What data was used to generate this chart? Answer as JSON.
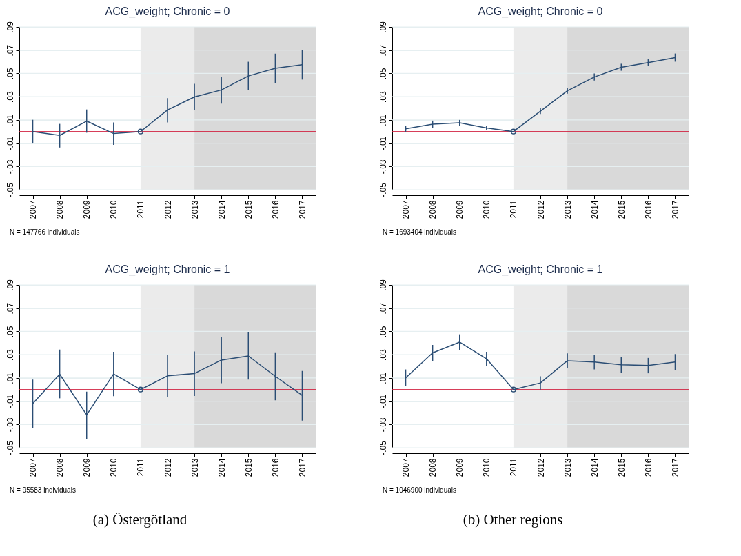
{
  "chart_data": [
    {
      "type": "line",
      "title": "ACG_weight; Chronic = 0",
      "annotations": [
        "N = 147766 individuals"
      ],
      "x": [
        2007,
        2008,
        2009,
        2010,
        2011,
        2012,
        2013,
        2014,
        2015,
        2016,
        2017
      ],
      "xlim": [
        2006.5,
        2017.5
      ],
      "xticks": [
        2007,
        2008,
        2009,
        2010,
        2011,
        2012,
        2013,
        2014,
        2015,
        2016,
        2017
      ],
      "ylim": [
        -0.05,
        0.09
      ],
      "yticks": [
        {
          "value": -0.05,
          "label": "-.05"
        },
        {
          "value": -0.03,
          "label": "-.03"
        },
        {
          "value": -0.01,
          "label": "-.01"
        },
        {
          "value": 0.01,
          "label": ".01"
        },
        {
          "value": 0.03,
          "label": ".03"
        },
        {
          "value": 0.05,
          "label": ".05"
        },
        {
          "value": 0.07,
          "label": ".07"
        },
        {
          "value": 0.09,
          "label": ".09"
        }
      ],
      "grid": "y",
      "marker": "none",
      "bands": [
        {
          "axis": "x",
          "from": 2011,
          "to": 2013,
          "color": "#ebebeb"
        },
        {
          "axis": "x",
          "from": 2013,
          "to": 2017.5,
          "color": "#d9d9d9"
        }
      ],
      "ref_lines": [
        {
          "axis": "y",
          "value": 0,
          "color": "#d01c3c"
        }
      ],
      "series": [
        {
          "type": "line",
          "color": "#2a4d74",
          "values": [
            0,
            -0.0033,
            0.009,
            -0.0017,
            0,
            0.0186,
            0.0298,
            0.0358,
            0.0478,
            0.0544,
            0.0575
          ],
          "errors": [
            [
              -0.0103,
              0.0101
            ],
            [
              -0.0137,
              0.0066
            ],
            [
              -0.001,
              0.019
            ],
            [
              -0.0114,
              0.0079
            ],
            null,
            [
              0.0079,
              0.0287
            ],
            [
              0.0186,
              0.041
            ],
            [
              0.024,
              0.047
            ],
            [
              0.0357,
              0.06
            ],
            [
              0.0417,
              0.067
            ],
            [
              0.0447,
              0.0702
            ]
          ]
        },
        {
          "type": "scatter",
          "marker": "circle",
          "color": "#2a4d74",
          "values": [
            null,
            null,
            null,
            null,
            0,
            null,
            null,
            null,
            null,
            null,
            null
          ]
        }
      ]
    },
    {
      "type": "line",
      "title": "ACG_weight; Chronic = 0",
      "annotations": [
        "N = 1693404 individuals"
      ],
      "x": [
        2007,
        2008,
        2009,
        2010,
        2011,
        2012,
        2013,
        2014,
        2015,
        2016,
        2017
      ],
      "xlim": [
        2006.5,
        2017.5
      ],
      "xticks": [
        2007,
        2008,
        2009,
        2010,
        2011,
        2012,
        2013,
        2014,
        2015,
        2016,
        2017
      ],
      "ylim": [
        -0.05,
        0.09
      ],
      "yticks": [
        {
          "value": -0.05,
          "label": "-.05"
        },
        {
          "value": -0.03,
          "label": "-.03"
        },
        {
          "value": -0.01,
          "label": "-.01"
        },
        {
          "value": 0.01,
          "label": ".01"
        },
        {
          "value": 0.03,
          "label": ".03"
        },
        {
          "value": 0.05,
          "label": ".05"
        },
        {
          "value": 0.07,
          "label": ".07"
        },
        {
          "value": 0.09,
          "label": ".09"
        }
      ],
      "grid": "y",
      "marker": "none",
      "bands": [
        {
          "axis": "x",
          "from": 2011,
          "to": 2013,
          "color": "#ebebeb"
        },
        {
          "axis": "x",
          "from": 2013,
          "to": 2017.5,
          "color": "#d9d9d9"
        }
      ],
      "ref_lines": [
        {
          "axis": "y",
          "value": 0,
          "color": "#d01c3c"
        }
      ],
      "series": [
        {
          "type": "line",
          "color": "#2a4d74",
          "values": [
            0.0024,
            0.0064,
            0.0075,
            0.0031,
            0,
            0.0176,
            0.0351,
            0.0469,
            0.0553,
            0.0593,
            0.0636
          ],
          "errors": [
            0.0025,
            0.003,
            0.0025,
            0.002,
            null,
            0.0025,
            0.0025,
            0.003,
            0.003,
            0.0028,
            0.0035
          ]
        },
        {
          "type": "scatter",
          "marker": "circle",
          "color": "#2a4d74",
          "values": [
            null,
            null,
            null,
            null,
            0,
            null,
            null,
            null,
            null,
            null,
            null
          ]
        }
      ]
    },
    {
      "type": "line",
      "title": "ACG_weight; Chronic = 1",
      "annotations": [
        "N = 95583 individuals",
        "(a) Östergötland"
      ],
      "x": [
        2007,
        2008,
        2009,
        2010,
        2011,
        2012,
        2013,
        2014,
        2015,
        2016,
        2017
      ],
      "xlim": [
        2006.5,
        2017.5
      ],
      "xticks": [
        2007,
        2008,
        2009,
        2010,
        2011,
        2012,
        2013,
        2014,
        2015,
        2016,
        2017
      ],
      "ylim": [
        -0.05,
        0.09
      ],
      "yticks": [
        {
          "value": -0.05,
          "label": "-.05"
        },
        {
          "value": -0.03,
          "label": "-.03"
        },
        {
          "value": -0.01,
          "label": "-.01"
        },
        {
          "value": 0.01,
          "label": ".01"
        },
        {
          "value": 0.03,
          "label": ".03"
        },
        {
          "value": 0.05,
          "label": ".05"
        },
        {
          "value": 0.07,
          "label": ".07"
        },
        {
          "value": 0.09,
          "label": ".09"
        }
      ],
      "grid": "y",
      "marker": "none",
      "bands": [
        {
          "axis": "x",
          "from": 2011,
          "to": 2013,
          "color": "#ebebeb"
        },
        {
          "axis": "x",
          "from": 2013,
          "to": 2017.5,
          "color": "#d9d9d9"
        }
      ],
      "ref_lines": [
        {
          "axis": "y",
          "value": 0,
          "color": "#d01c3c"
        }
      ],
      "series": [
        {
          "type": "line",
          "color": "#2a4d74",
          "values": [
            -0.0121,
            0.0132,
            -0.0217,
            0.0134,
            0,
            0.0118,
            0.0138,
            0.0254,
            0.0289,
            0.0114,
            -0.005
          ],
          "errors": [
            [
              -0.0333,
              0.0086
            ],
            [
              -0.0075,
              0.0344
            ],
            [
              -0.0423,
              -0.0018
            ],
            [
              -0.0057,
              0.0324
            ],
            null,
            [
              -0.0063,
              0.0296
            ],
            [
              -0.0055,
              0.0327
            ],
            [
              0.0055,
              0.0451
            ],
            [
              0.0086,
              0.0493
            ],
            [
              -0.0092,
              0.032
            ],
            [
              -0.0267,
              0.016
            ]
          ]
        },
        {
          "type": "scatter",
          "marker": "circle",
          "color": "#2a4d74",
          "values": [
            null,
            null,
            null,
            null,
            0,
            null,
            null,
            null,
            null,
            null,
            null
          ]
        }
      ]
    },
    {
      "type": "line",
      "title": "ACG_weight; Chronic = 1",
      "annotations": [
        "N = 1046900 individuals",
        "(b) Other regions"
      ],
      "x": [
        2007,
        2008,
        2009,
        2010,
        2011,
        2012,
        2013,
        2014,
        2015,
        2016,
        2017
      ],
      "xlim": [
        2006.5,
        2017.5
      ],
      "xticks": [
        2007,
        2008,
        2009,
        2010,
        2011,
        2012,
        2013,
        2014,
        2015,
        2016,
        2017
      ],
      "ylim": [
        -0.05,
        0.09
      ],
      "yticks": [
        {
          "value": -0.05,
          "label": "-.05"
        },
        {
          "value": -0.03,
          "label": "-.03"
        },
        {
          "value": -0.01,
          "label": "-.01"
        },
        {
          "value": 0.01,
          "label": ".01"
        },
        {
          "value": 0.03,
          "label": ".03"
        },
        {
          "value": 0.05,
          "label": ".05"
        },
        {
          "value": 0.07,
          "label": ".07"
        },
        {
          "value": 0.09,
          "label": ".09"
        }
      ],
      "grid": "y",
      "marker": "none",
      "bands": [
        {
          "axis": "x",
          "from": 2011,
          "to": 2013,
          "color": "#ebebeb"
        },
        {
          "axis": "x",
          "from": 2013,
          "to": 2017.5,
          "color": "#d9d9d9"
        }
      ],
      "ref_lines": [
        {
          "axis": "y",
          "value": 0,
          "color": "#d01c3c"
        }
      ],
      "series": [
        {
          "type": "line",
          "color": "#2a4d74",
          "values": [
            0.0101,
            0.0316,
            0.0408,
            0.0265,
            0,
            0.0057,
            0.0248,
            0.0237,
            0.0213,
            0.0208,
            0.0237
          ],
          "errors": [
            [
              0.0029,
              0.0173
            ],
            [
              0.0245,
              0.0384
            ],
            [
              0.0342,
              0.0475
            ],
            [
              0.0204,
              0.0324
            ],
            null,
            [
              0,
              0.0114
            ],
            [
              0.0186,
              0.0311
            ],
            [
              0.0173,
              0.03
            ],
            [
              0.0145,
              0.0278
            ],
            [
              0.014,
              0.0272
            ],
            [
              0.0169,
              0.0305
            ]
          ]
        },
        {
          "type": "scatter",
          "marker": "circle",
          "color": "#2a4d74",
          "values": [
            null,
            null,
            null,
            null,
            0,
            null,
            null,
            null,
            null,
            null,
            null
          ]
        }
      ]
    }
  ]
}
